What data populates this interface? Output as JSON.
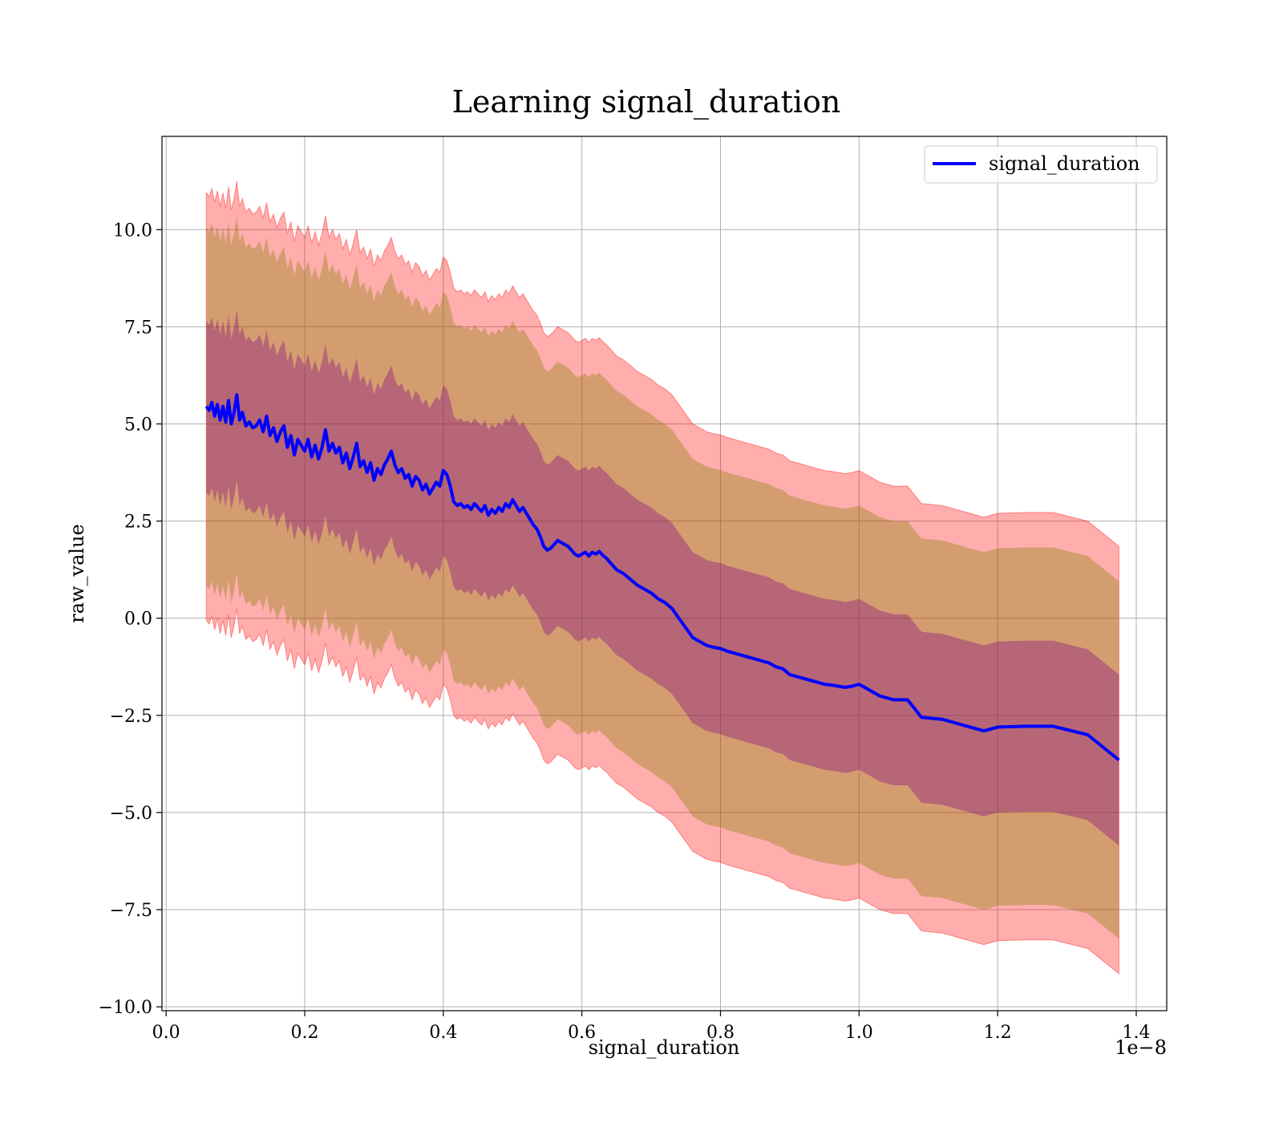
{
  "chart_data": {
    "type": "area",
    "title": "Learning signal_duration",
    "xlabel": "signal_duration",
    "ylabel": "raw_value",
    "x_offset_label": "1e−8",
    "xlim": [
      -0.006,
      1.444
    ],
    "ylim": [
      -10.1,
      12.4
    ],
    "x_ticks": [
      0.0,
      0.2,
      0.4,
      0.6,
      0.8,
      1.0,
      1.2,
      1.4
    ],
    "x_tick_labels": [
      "0.0",
      "0.2",
      "0.4",
      "0.6",
      "0.8",
      "1.0",
      "1.2",
      "1.4"
    ],
    "y_ticks": [
      -10.0,
      -7.5,
      -5.0,
      -2.5,
      0.0,
      2.5,
      5.0,
      7.5,
      10.0
    ],
    "y_tick_labels": [
      "−10.0",
      "−7.5",
      "−5.0",
      "−2.5",
      "0.0",
      "2.5",
      "5.0",
      "7.5",
      "10.0"
    ],
    "grid": true,
    "legend": {
      "position": "top-right",
      "entries": [
        "signal_duration"
      ]
    },
    "colors": {
      "mean_line": "#0000ff",
      "outer_band": "#ff0000",
      "outer_band_opacity": 0.32,
      "mid_band": "#808000",
      "mid_band_opacity": 0.35,
      "inner_band": "#800080",
      "inner_band_opacity": 0.35
    },
    "band_half_widths": {
      "inner": 2.2,
      "mid": 4.6,
      "outer": 5.5
    },
    "series": [
      {
        "name": "signal_duration",
        "x": [
          0.058,
          0.062,
          0.066,
          0.07,
          0.074,
          0.078,
          0.082,
          0.086,
          0.09,
          0.094,
          0.098,
          0.102,
          0.106,
          0.11,
          0.115,
          0.12,
          0.125,
          0.13,
          0.135,
          0.14,
          0.145,
          0.15,
          0.155,
          0.16,
          0.165,
          0.17,
          0.175,
          0.18,
          0.185,
          0.19,
          0.195,
          0.2,
          0.205,
          0.21,
          0.215,
          0.22,
          0.225,
          0.23,
          0.235,
          0.24,
          0.245,
          0.25,
          0.255,
          0.26,
          0.265,
          0.27,
          0.275,
          0.28,
          0.285,
          0.29,
          0.295,
          0.3,
          0.305,
          0.31,
          0.315,
          0.32,
          0.325,
          0.33,
          0.335,
          0.34,
          0.345,
          0.35,
          0.355,
          0.36,
          0.365,
          0.37,
          0.375,
          0.38,
          0.385,
          0.39,
          0.395,
          0.4,
          0.405,
          0.41,
          0.415,
          0.42,
          0.425,
          0.43,
          0.435,
          0.44,
          0.445,
          0.45,
          0.455,
          0.46,
          0.465,
          0.47,
          0.475,
          0.48,
          0.485,
          0.49,
          0.495,
          0.5,
          0.505,
          0.51,
          0.515,
          0.52,
          0.525,
          0.53,
          0.535,
          0.54,
          0.545,
          0.55,
          0.555,
          0.56,
          0.565,
          0.57,
          0.575,
          0.58,
          0.585,
          0.59,
          0.595,
          0.6,
          0.605,
          0.61,
          0.615,
          0.62,
          0.625,
          0.63,
          0.635,
          0.64,
          0.65,
          0.66,
          0.67,
          0.68,
          0.69,
          0.7,
          0.71,
          0.72,
          0.73,
          0.74,
          0.75,
          0.76,
          0.77,
          0.78,
          0.79,
          0.8,
          0.81,
          0.82,
          0.83,
          0.84,
          0.85,
          0.86,
          0.87,
          0.88,
          0.89,
          0.9,
          0.91,
          0.92,
          0.93,
          0.94,
          0.95,
          0.96,
          0.97,
          0.98,
          0.99,
          1.0,
          1.01,
          1.02,
          1.03,
          1.04,
          1.05,
          1.06,
          1.07,
          1.09,
          1.12,
          1.15,
          1.18,
          1.2,
          1.24,
          1.28,
          1.33,
          1.375
        ],
        "values": [
          5.45,
          5.35,
          5.55,
          5.2,
          5.5,
          5.1,
          5.45,
          5.05,
          5.6,
          5.0,
          5.3,
          5.75,
          5.1,
          5.3,
          4.95,
          5.05,
          4.9,
          4.95,
          5.1,
          4.8,
          5.2,
          4.7,
          4.9,
          4.55,
          4.8,
          4.95,
          4.4,
          4.7,
          4.2,
          4.6,
          4.45,
          4.3,
          4.6,
          4.15,
          4.45,
          4.1,
          4.4,
          4.85,
          4.3,
          4.5,
          4.25,
          4.4,
          4.0,
          4.25,
          3.85,
          4.15,
          4.5,
          3.9,
          4.05,
          3.75,
          4.0,
          3.55,
          3.85,
          3.7,
          3.95,
          4.1,
          4.3,
          3.95,
          3.75,
          3.85,
          3.6,
          3.7,
          3.4,
          3.65,
          3.55,
          3.3,
          3.45,
          3.2,
          3.35,
          3.5,
          3.4,
          3.8,
          3.7,
          3.4,
          3.0,
          2.9,
          2.95,
          2.85,
          2.9,
          2.8,
          2.95,
          2.85,
          2.75,
          2.9,
          2.65,
          2.8,
          2.7,
          2.85,
          2.75,
          2.95,
          2.85,
          3.05,
          2.9,
          2.75,
          2.85,
          2.7,
          2.55,
          2.4,
          2.3,
          2.1,
          1.85,
          1.75,
          1.8,
          1.9,
          2.0,
          1.95,
          1.9,
          1.85,
          1.75,
          1.65,
          1.6,
          1.65,
          1.7,
          1.6,
          1.7,
          1.65,
          1.72,
          1.62,
          1.55,
          1.45,
          1.25,
          1.15,
          1.0,
          0.85,
          0.75,
          0.65,
          0.5,
          0.4,
          0.25,
          0.0,
          -0.25,
          -0.5,
          -0.6,
          -0.7,
          -0.75,
          -0.78,
          -0.85,
          -0.9,
          -0.95,
          -1.0,
          -1.05,
          -1.1,
          -1.15,
          -1.25,
          -1.3,
          -1.45,
          -1.5,
          -1.55,
          -1.6,
          -1.65,
          -1.7,
          -1.72,
          -1.75,
          -1.78,
          -1.75,
          -1.7,
          -1.8,
          -1.9,
          -2.0,
          -2.05,
          -2.1,
          -2.1,
          -2.1,
          -2.55,
          -2.6,
          -2.75,
          -2.9,
          -2.8,
          -2.78,
          -2.78,
          -3.0,
          -3.65
        ]
      }
    ]
  }
}
